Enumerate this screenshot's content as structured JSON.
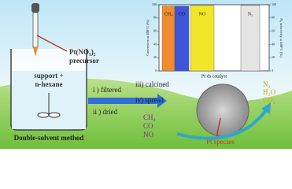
{
  "diagram": {
    "precursor": [
      "Pt(NO₃)₂",
      "precursor"
    ],
    "support": [
      "support +",
      "n-hexane"
    ],
    "method": "Double-solvent method",
    "steps_left": [
      "i ) filtered",
      "ii ) dried"
    ],
    "steps_right": [
      "iii) calcined",
      "iv) spread"
    ],
    "pt_species": "Pt species",
    "reactants": [
      "CH₄",
      "CO",
      "NO"
    ],
    "products": [
      "N₂",
      "H₂O",
      "CO₂"
    ]
  },
  "chart_data": {
    "type": "bar",
    "xlabel": "Pt-ds catalyst",
    "ylabel": "Conversion at 400°C (%)",
    "y2label": "N₂ selectivity at 400°C (%)",
    "categories": [
      "CH₄",
      "CO",
      "NO",
      "N₂"
    ],
    "series": [
      {
        "colors": [
          "#f28a2e",
          "#3d55d6",
          "#f2e62a",
          null
        ],
        "values": [
          98,
          98,
          99,
          null
        ]
      },
      {
        "colors": [
          null,
          null,
          null,
          "#e4e4e4"
        ],
        "values": [
          null,
          null,
          null,
          99
        ],
        "axis": "y2"
      }
    ],
    "ylim": [
      0,
      100
    ],
    "yticks": [
      0,
      20,
      40,
      60,
      80,
      100
    ],
    "y2lim": [
      0,
      100
    ],
    "y2ticks": [
      0,
      20,
      40,
      60,
      80,
      100
    ]
  }
}
